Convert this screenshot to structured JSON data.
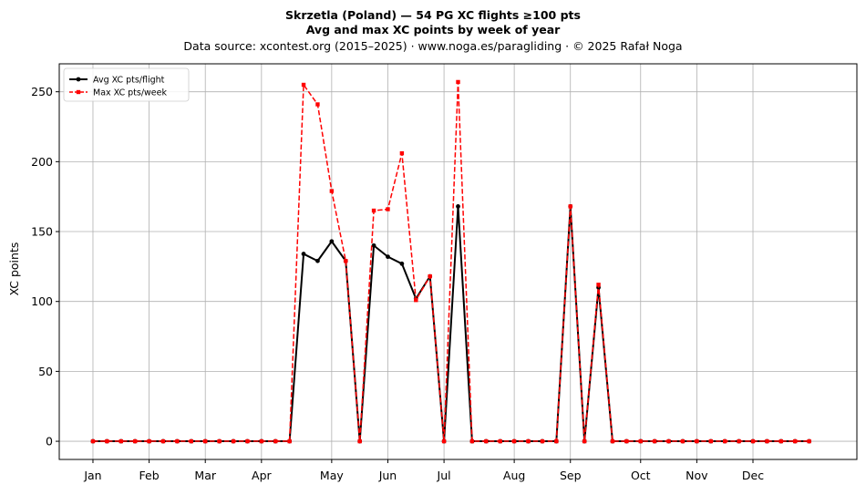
{
  "chart_data": {
    "type": "line",
    "title_line1": "Skrzetla (Poland)  —  54 PG XC flights ≥100 pts",
    "title_line2": "Avg and max XC points by week of year",
    "subtitle": "Data source: xcontest.org (2015–2025)  ·  www.noga.es/paragliding  ·  © 2025 Rafał Noga",
    "xlabel": "",
    "ylabel": "XC points",
    "xlim": [
      -2.4,
      54.4
    ],
    "ylim": [
      -13,
      270
    ],
    "yticks": [
      0,
      50,
      100,
      150,
      200,
      250
    ],
    "xticks": [
      {
        "week": 0,
        "label": "Jan"
      },
      {
        "week": 4,
        "label": "Feb"
      },
      {
        "week": 8,
        "label": "Mar"
      },
      {
        "week": 12,
        "label": "Apr"
      },
      {
        "week": 17,
        "label": "May"
      },
      {
        "week": 21,
        "label": "Jun"
      },
      {
        "week": 25,
        "label": "Jul"
      },
      {
        "week": 30,
        "label": "Aug"
      },
      {
        "week": 34,
        "label": "Sep"
      },
      {
        "week": 39,
        "label": "Oct"
      },
      {
        "week": 43,
        "label": "Nov"
      },
      {
        "week": 47,
        "label": "Dec"
      }
    ],
    "grid": true,
    "legend_position": "upper-left",
    "series": [
      {
        "name": "Avg XC pts/flight",
        "color": "#000000",
        "style": "solid",
        "marker": "circle",
        "x": [
          0,
          1,
          2,
          3,
          4,
          5,
          6,
          7,
          8,
          9,
          10,
          11,
          12,
          13,
          14,
          15,
          16,
          17,
          18,
          19,
          20,
          21,
          22,
          23,
          24,
          25,
          26,
          27,
          28,
          29,
          30,
          31,
          32,
          33,
          34,
          35,
          36,
          37,
          38,
          39,
          40,
          41,
          42,
          43,
          44,
          45,
          46,
          47,
          48,
          49,
          50,
          51
        ],
        "y": [
          0,
          0,
          0,
          0,
          0,
          0,
          0,
          0,
          0,
          0,
          0,
          0,
          0,
          0,
          0,
          134,
          129,
          143,
          129,
          0,
          140,
          132,
          127,
          102,
          118,
          0,
          168,
          0,
          0,
          0,
          0,
          0,
          0,
          0,
          168,
          0,
          110,
          0,
          0,
          0,
          0,
          0,
          0,
          0,
          0,
          0,
          0,
          0,
          0,
          0,
          0,
          0
        ]
      },
      {
        "name": "Max XC pts/week",
        "color": "#ff0000",
        "style": "dashed",
        "marker": "square",
        "x": [
          0,
          1,
          2,
          3,
          4,
          5,
          6,
          7,
          8,
          9,
          10,
          11,
          12,
          13,
          14,
          15,
          16,
          17,
          18,
          19,
          20,
          21,
          22,
          23,
          24,
          25,
          26,
          27,
          28,
          29,
          30,
          31,
          32,
          33,
          34,
          35,
          36,
          37,
          38,
          39,
          40,
          41,
          42,
          43,
          44,
          45,
          46,
          47,
          48,
          49,
          50,
          51
        ],
        "y": [
          0,
          0,
          0,
          0,
          0,
          0,
          0,
          0,
          0,
          0,
          0,
          0,
          0,
          0,
          0,
          255,
          241,
          179,
          129,
          0,
          165,
          166,
          206,
          101,
          118,
          0,
          257,
          0,
          0,
          0,
          0,
          0,
          0,
          0,
          168,
          0,
          112,
          0,
          0,
          0,
          0,
          0,
          0,
          0,
          0,
          0,
          0,
          0,
          0,
          0,
          0,
          0
        ]
      }
    ]
  }
}
